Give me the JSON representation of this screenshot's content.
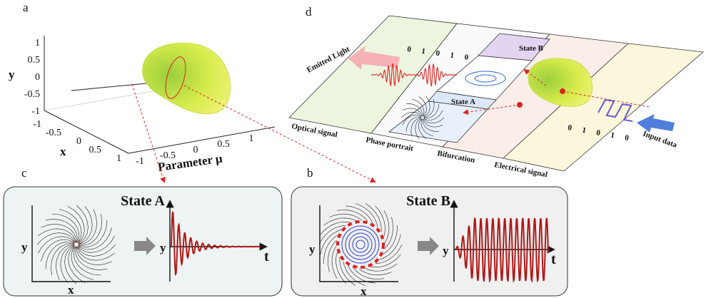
{
  "panels": {
    "a": {
      "label": "a",
      "y_axis": "y",
      "x_axis": "x",
      "mu_axis": "Parameter μ",
      "y_ticks": [
        "1",
        "0.5",
        "0",
        "-0.5",
        "-1"
      ],
      "x_ticks": [
        "-1",
        "-0.5",
        "0",
        "0.5",
        "1"
      ],
      "mu_ticks": [
        "-1",
        "-0.5",
        "0",
        "0.5",
        "1"
      ]
    },
    "b": {
      "label": "b",
      "title": "State B",
      "phase_y": "y",
      "phase_x": "x",
      "signal_y": "y",
      "signal_t": "t"
    },
    "c": {
      "label": "c",
      "title": "State A",
      "phase_y": "y",
      "phase_x": "x",
      "signal_y": "y",
      "signal_t": "t"
    },
    "d": {
      "label": "d",
      "emitted": "Emitted Light",
      "state_b": "State B",
      "state_a": "State A",
      "sections": [
        "Optical signal",
        "Phase portrait",
        "Bifurcation",
        "Electrical signal"
      ],
      "input": "Input data",
      "bits_optical": "0 1 0 1 0",
      "bits_electrical": "0 1 0 1 0"
    }
  }
}
